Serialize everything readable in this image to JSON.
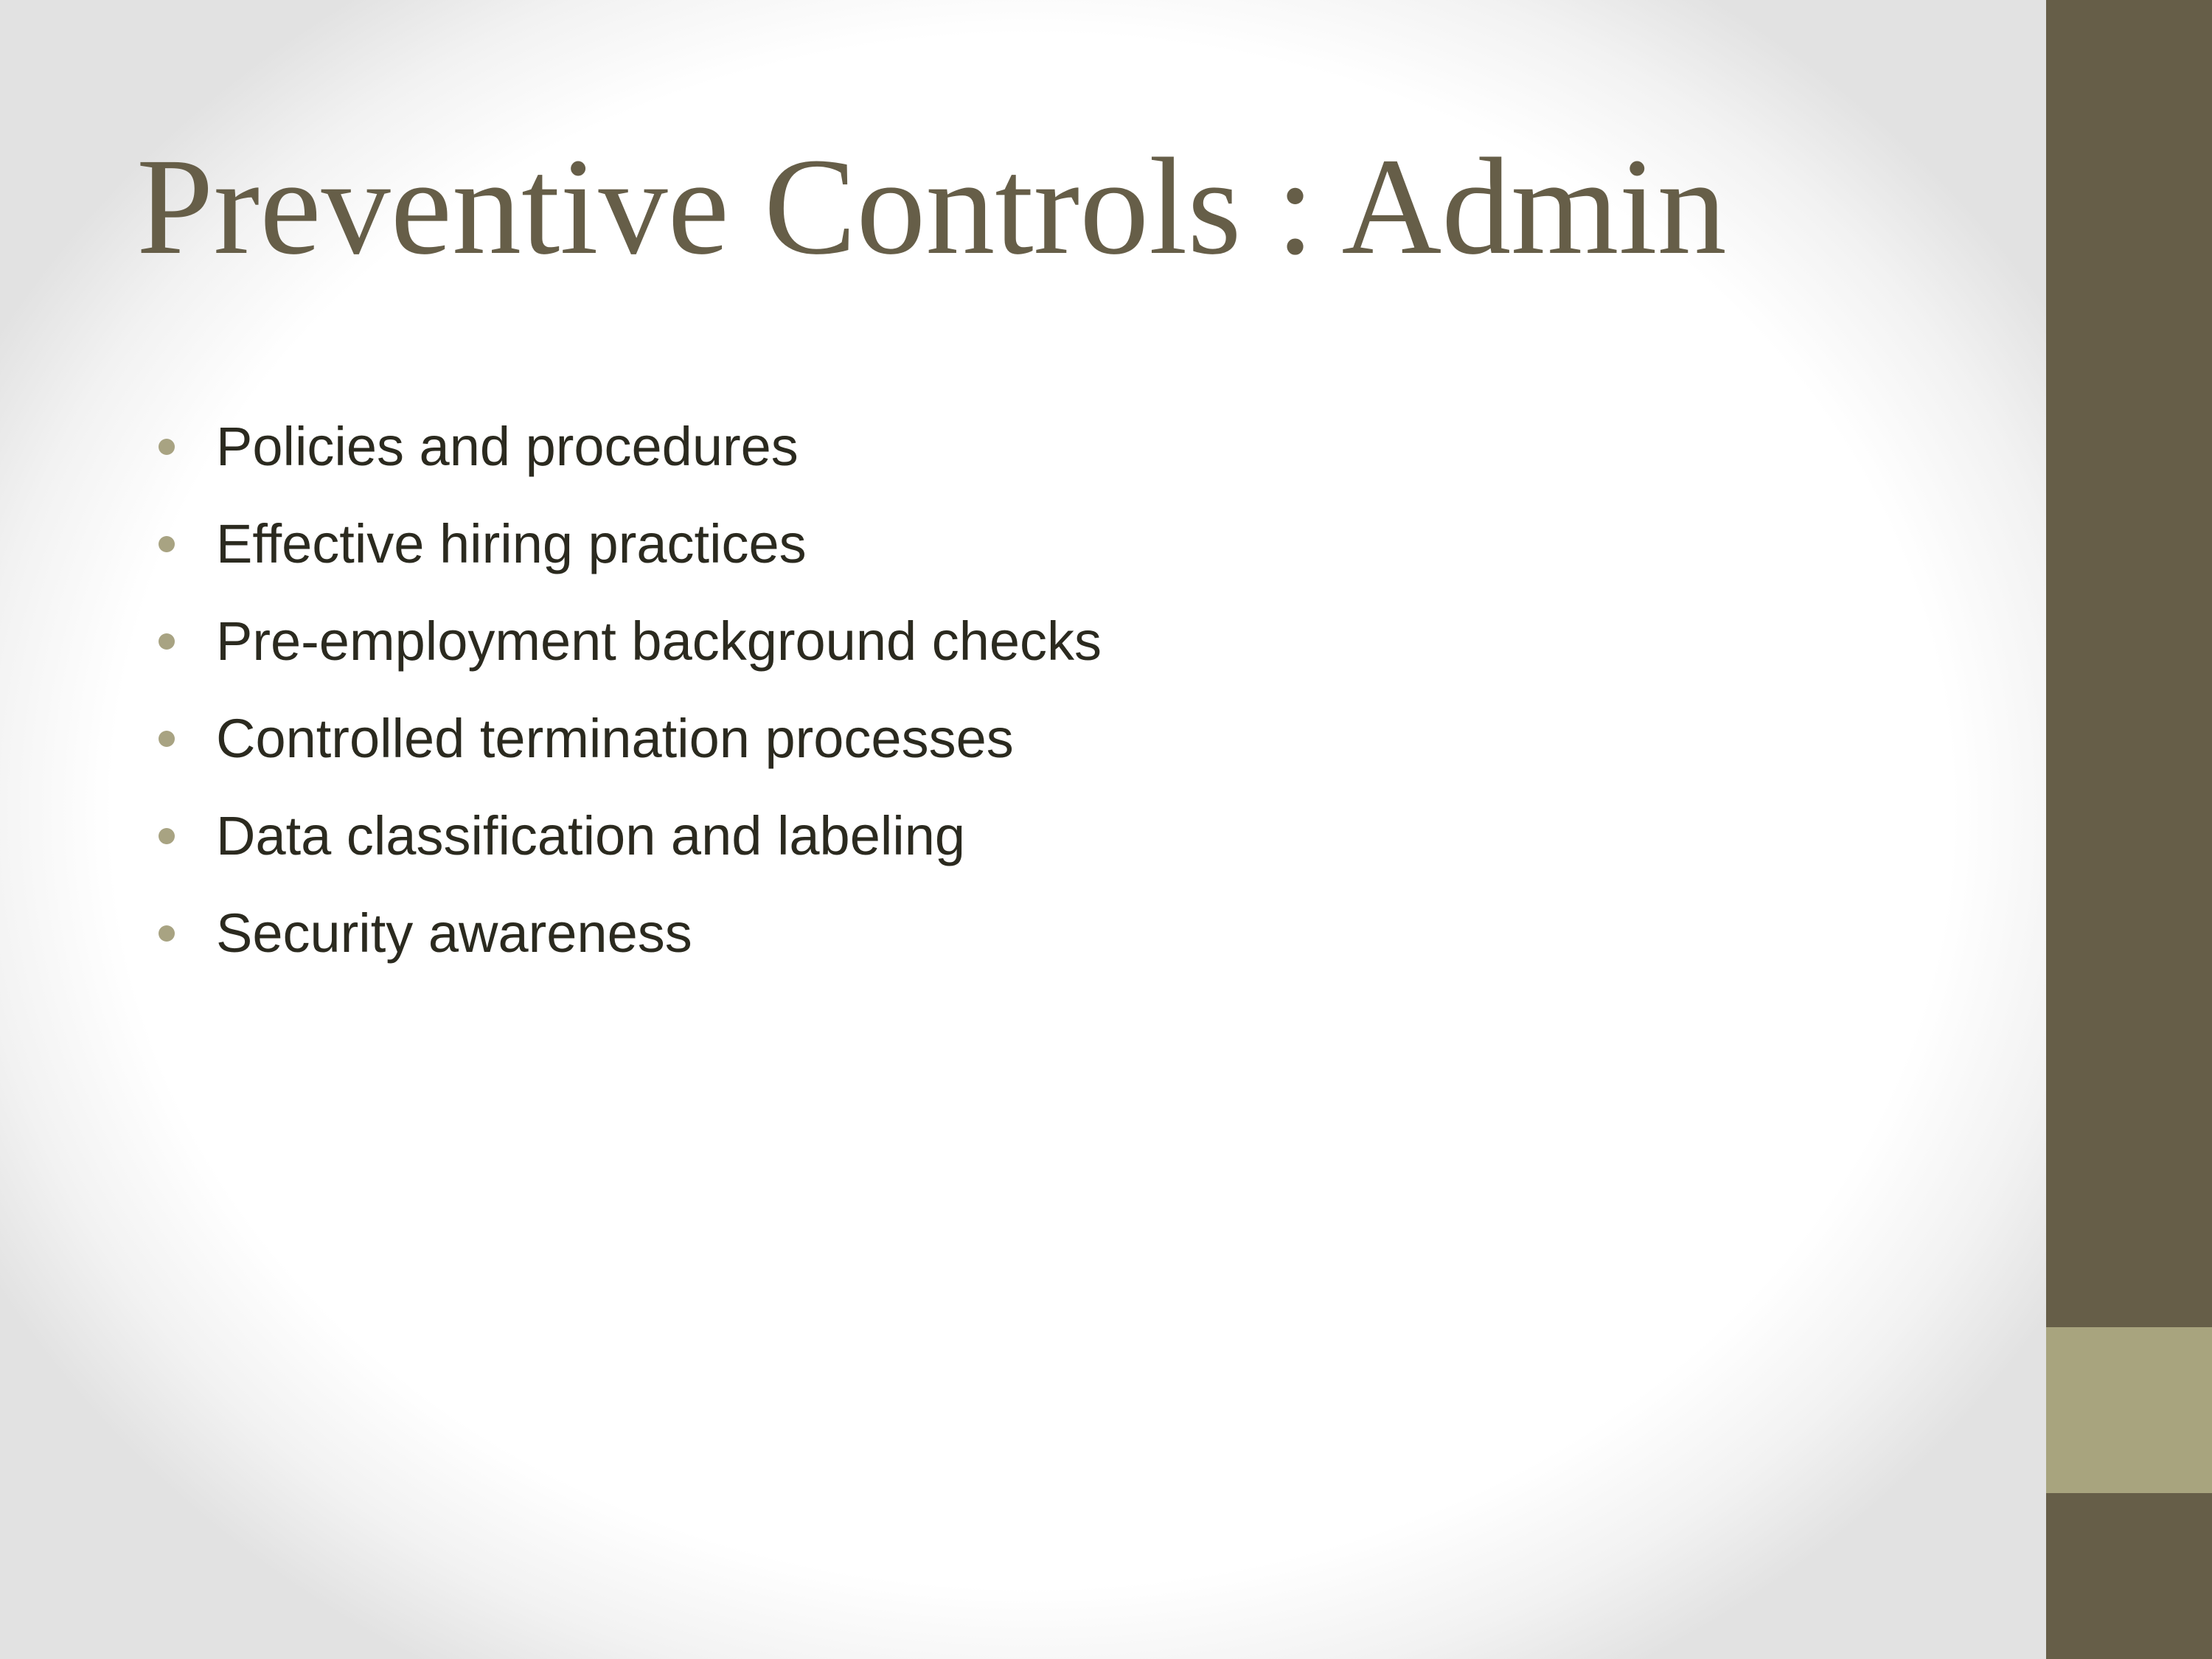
{
  "slide": {
    "title": "Preventive Controls : Admin",
    "bullets": [
      {
        "label": "Policies and procedures"
      },
      {
        "label": "Effective hiring practices"
      },
      {
        "label": "Pre-employment background checks"
      },
      {
        "label": "Controlled termination processes"
      },
      {
        "label": "Data classification and labeling"
      },
      {
        "label": "Security awareness"
      }
    ]
  },
  "colors": {
    "title": "#665e48",
    "bullet_text": "#2b2a1f",
    "bullet_dot": "#a8a382",
    "side_bar": "#665e48",
    "side_bar_accent": "#a8a47e"
  }
}
